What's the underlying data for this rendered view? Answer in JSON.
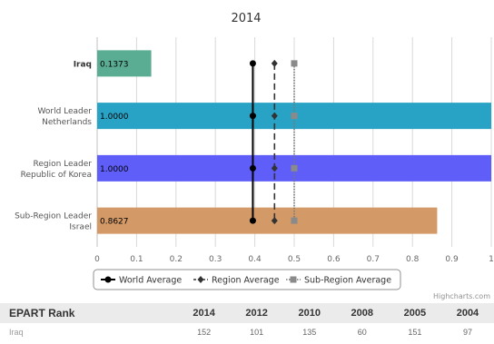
{
  "chart_data": {
    "type": "bar",
    "orientation": "horizontal",
    "title": "2014",
    "categories": [
      {
        "lines": [
          "Iraq"
        ],
        "bold": true
      },
      {
        "lines": [
          "World Leader",
          "Netherlands"
        ],
        "bold": false
      },
      {
        "lines": [
          "Region Leader",
          "Republic of Korea"
        ],
        "bold": false
      },
      {
        "lines": [
          "Sub-Region Leader",
          "Israel"
        ],
        "bold": false
      }
    ],
    "values": [
      0.1373,
      1.0,
      1.0,
      0.8627
    ],
    "value_labels": [
      "0.1373",
      "1.0000",
      "1.0000",
      "0.8627"
    ],
    "bar_colors": [
      "#5aad93",
      "#29a3c5",
      "#5f5ef8",
      "#d39a67"
    ],
    "xlim": [
      0,
      1
    ],
    "xticks": [
      "0",
      "0.1",
      "0.2",
      "0.3",
      "0.4",
      "0.5",
      "0.6",
      "0.7",
      "0.8",
      "0.9",
      "1"
    ],
    "grid": true,
    "reference_lines": [
      {
        "name": "World Average",
        "value": 0.395,
        "color": "#000000",
        "style": "solid",
        "marker": "circle"
      },
      {
        "name": "Region Average",
        "value": 0.45,
        "color": "#333333",
        "style": "dashed",
        "marker": "diamond"
      },
      {
        "name": "Sub-Region Average",
        "value": 0.5,
        "color": "#777777",
        "style": "dotted",
        "marker": "square"
      }
    ],
    "legend_position": "bottom-center"
  },
  "credits": "Highcharts.com",
  "rank_table": {
    "header": "EPART Rank",
    "years": [
      "2014",
      "2012",
      "2010",
      "2008",
      "2005",
      "2004"
    ],
    "rows": [
      {
        "label": "Iraq",
        "values": [
          "152",
          "101",
          "135",
          "60",
          "151",
          "97"
        ]
      }
    ]
  }
}
